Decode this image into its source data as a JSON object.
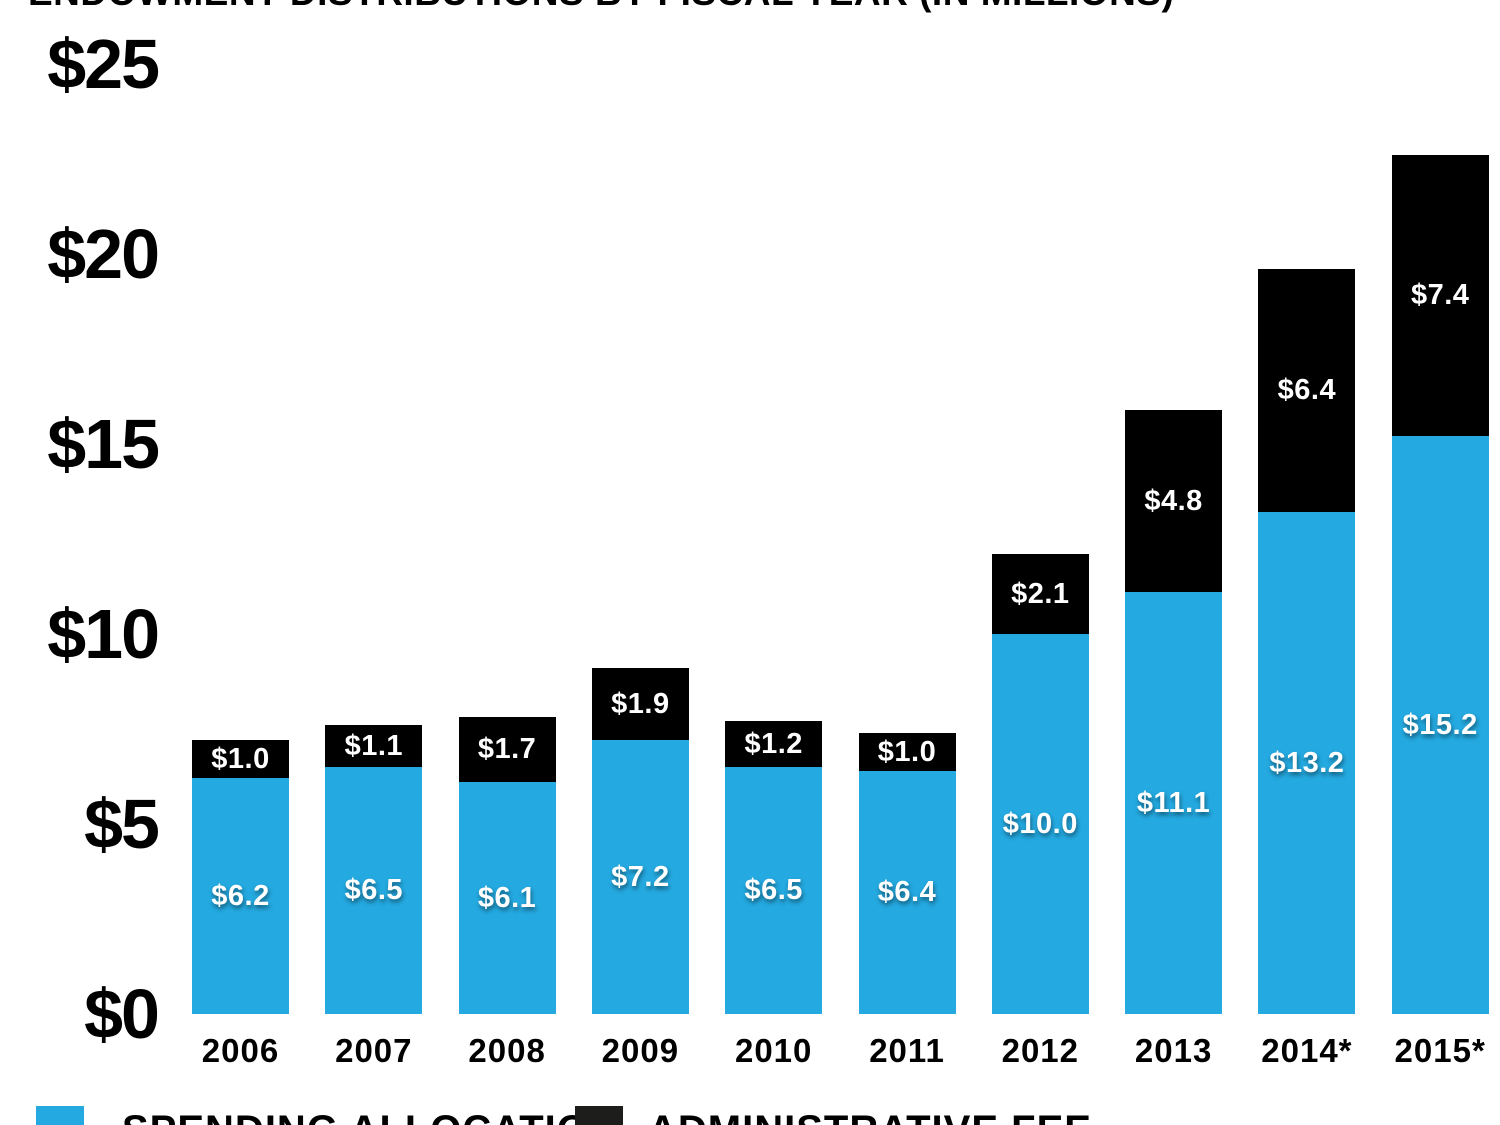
{
  "title": "ENDOWMENT DISTRIBUTIONS BY FISCAL YEAR (IN MILLIONS)",
  "colors": {
    "spending_blue": "#24A9E0",
    "fee_black": "#000000",
    "legend_black": "#1D1D1B",
    "axis_text": "#000000",
    "value_text": "#FFFFFF",
    "background": "#FFFFFF"
  },
  "y_axis": {
    "ticks": [
      {
        "label": "$25",
        "value": 25
      },
      {
        "label": "$20",
        "value": 20
      },
      {
        "label": "$15",
        "value": 15
      },
      {
        "label": "$10",
        "value": 10
      },
      {
        "label": "$5",
        "value": 5
      },
      {
        "label": "$0",
        "value": 0
      }
    ]
  },
  "legend": {
    "items": [
      {
        "label": "SPENDING ALLOCATION",
        "color": "#24A9E0"
      },
      {
        "label": "ADMINISTRATIVE FEE",
        "color": "#1D1D1B"
      }
    ]
  },
  "chart_data": {
    "type": "bar",
    "stacked": true,
    "title": "ENDOWMENT DISTRIBUTIONS BY FISCAL YEAR (IN MILLIONS)",
    "xlabel": "",
    "ylabel": "",
    "ylim": [
      0,
      25
    ],
    "y_ticks": [
      25,
      20,
      15,
      10,
      5,
      0
    ],
    "grid": false,
    "legend_position": "bottom",
    "categories": [
      "2006",
      "2007",
      "2008",
      "2009",
      "2010",
      "2011",
      "2012",
      "2013",
      "2014*",
      "2015*"
    ],
    "series": [
      {
        "name": "SPENDING ALLOCATION",
        "color": "#24A9E0",
        "values": [
          6.2,
          6.5,
          6.1,
          7.2,
          6.5,
          6.4,
          10.0,
          11.1,
          13.2,
          15.2
        ],
        "labels": [
          "$6.2",
          "$6.5",
          "$6.1",
          "$7.2",
          "$6.5",
          "$6.4",
          "$10.0",
          "$11.1",
          "$13.2",
          "$15.2"
        ]
      },
      {
        "name": "ADMINISTRATIVE FEE",
        "color": "#000000",
        "values": [
          1.0,
          1.1,
          1.7,
          1.9,
          1.2,
          1.0,
          2.1,
          4.8,
          6.4,
          7.4
        ],
        "labels": [
          "$1.0",
          "$1.1",
          "$1.7",
          "$1.9",
          "$1.2",
          "$1.0",
          "$2.1",
          "$4.8",
          "$6.4",
          "$7.4"
        ]
      }
    ]
  }
}
